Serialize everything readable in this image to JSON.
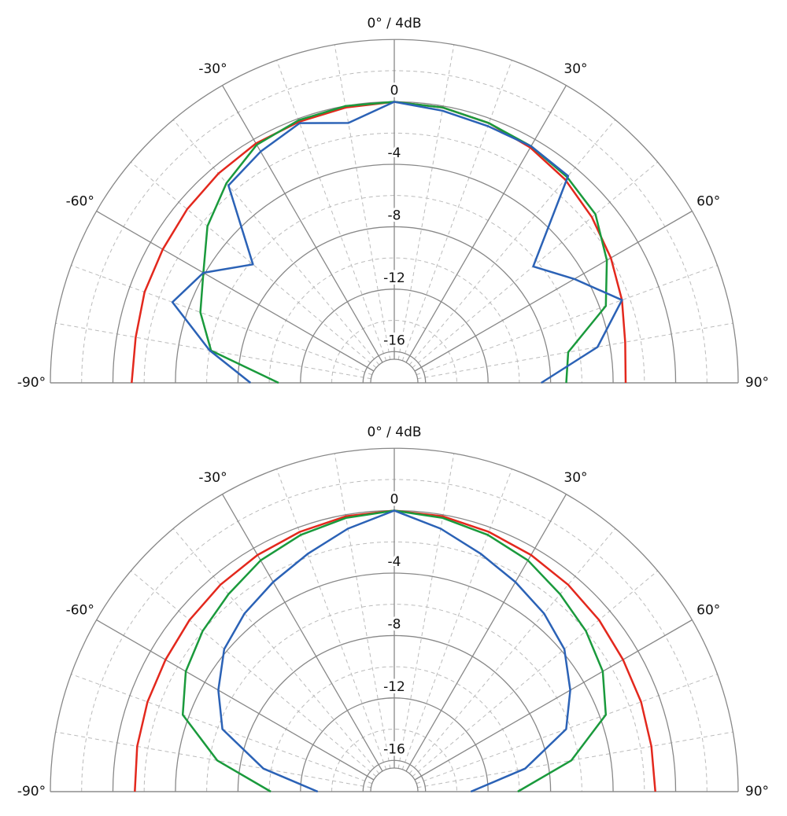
{
  "chart_data": [
    {
      "type": "polar",
      "title": "0° / 4dB",
      "theta": [
        -90,
        -80,
        -70,
        -60,
        -50,
        -40,
        -30,
        -20,
        -10,
        0,
        10,
        20,
        30,
        40,
        50,
        60,
        70,
        80,
        90
      ],
      "rlim": [
        -18,
        4
      ],
      "rticks": [
        0,
        -4,
        -8,
        -12,
        -16
      ],
      "thetaticks": [
        {
          "value": -90,
          "label": "-90°"
        },
        {
          "value": -60,
          "label": "-60°"
        },
        {
          "value": -30,
          "label": "-30°"
        },
        {
          "value": 30,
          "label": "30°"
        },
        {
          "value": 60,
          "label": "60°"
        },
        {
          "value": 90,
          "label": "90°"
        }
      ],
      "series": [
        {
          "color": "#e3281d",
          "values": [
            -1.2,
            -1.2,
            -1.0,
            -0.9,
            -0.7,
            -0.5,
            -0.3,
            -0.2,
            -0.1,
            0,
            -0.1,
            -0.3,
            -0.6,
            -1.0,
            -1.5,
            -2.0,
            -2.5,
            -3.0,
            -3.2
          ]
        },
        {
          "color": "#1a9a3c",
          "values": [
            -10.6,
            -6.1,
            -4.8,
            -3.9,
            -2.4,
            -1.3,
            -0.4,
            -0.1,
            0,
            0,
            -0.1,
            -0.3,
            -0.5,
            -0.8,
            -1.2,
            -2.3,
            -3.6,
            -6.7,
            -7.0
          ]
        },
        {
          "color": "#2b62b6",
          "values": [
            -8.8,
            -6.0,
            -2.9,
            -3.9,
            -6.2,
            -1.5,
            -0.9,
            -0.3,
            -1.1,
            0,
            -0.3,
            -0.5,
            -0.5,
            -0.7,
            -6.4,
            -4.7,
            -2.5,
            -4.8,
            -8.6
          ]
        }
      ]
    },
    {
      "type": "polar",
      "title": "0° / 4dB",
      "theta": [
        -90,
        -80,
        -70,
        -60,
        -50,
        -40,
        -30,
        -20,
        -10,
        0,
        10,
        20,
        30,
        40,
        50,
        60,
        70,
        80,
        90
      ],
      "rlim": [
        -18,
        4
      ],
      "rticks": [
        0,
        -4,
        -8,
        -12,
        -16
      ],
      "thetaticks": [
        {
          "value": -90,
          "label": "-90°"
        },
        {
          "value": -60,
          "label": "-60°"
        },
        {
          "value": -30,
          "label": "-30°"
        },
        {
          "value": 30,
          "label": "30°"
        },
        {
          "value": 60,
          "label": "60°"
        },
        {
          "value": 90,
          "label": "90°"
        }
      ],
      "series": [
        {
          "color": "#e3281d",
          "values": [
            -1.4,
            -1.3,
            -1.2,
            -1.1,
            -0.9,
            -0.7,
            -0.5,
            -0.3,
            -0.1,
            0,
            -0.1,
            -0.3,
            -0.5,
            -0.7,
            -0.9,
            -1.1,
            -1.2,
            -1.3,
            -1.3
          ]
        },
        {
          "color": "#1a9a3c",
          "values": [
            -10.1,
            -6.5,
            -3.6,
            -2.6,
            -2.0,
            -1.5,
            -0.9,
            -0.5,
            -0.2,
            0,
            -0.2,
            -0.5,
            -0.9,
            -1.5,
            -2.0,
            -2.6,
            -3.6,
            -6.5,
            -10.1
          ]
        },
        {
          "color": "#2b62b6",
          "values": [
            -13.1,
            -9.5,
            -6.3,
            -5.0,
            -3.8,
            -3.1,
            -2.5,
            -1.8,
            -0.9,
            0,
            -0.9,
            -1.8,
            -2.5,
            -3.1,
            -3.8,
            -5.0,
            -6.3,
            -9.5,
            -13.1
          ]
        }
      ]
    }
  ]
}
